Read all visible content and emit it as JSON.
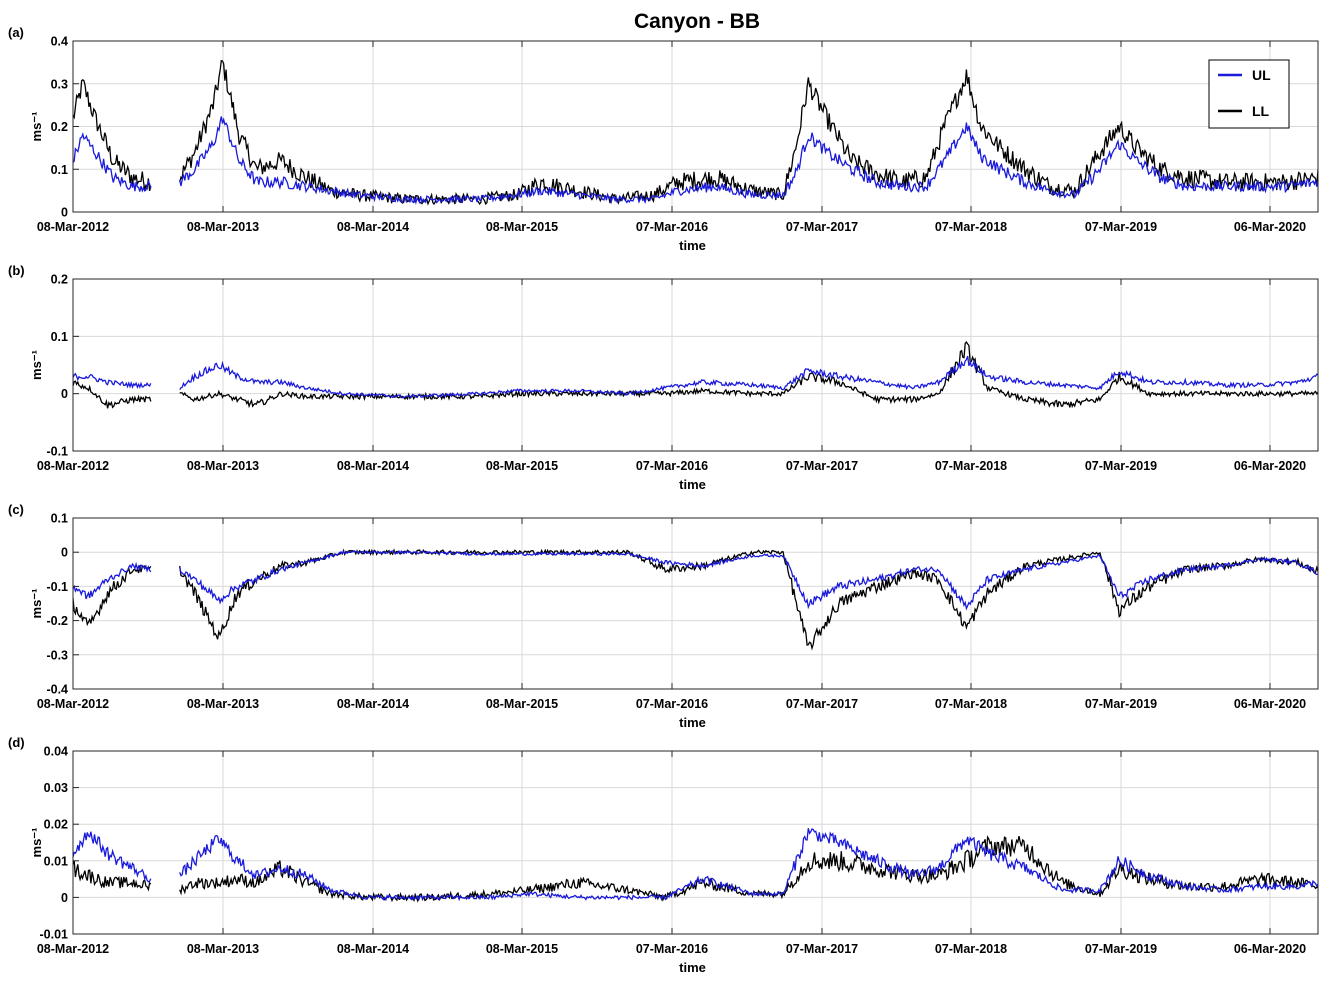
{
  "figure": {
    "title": "Canyon - BB",
    "colors": {
      "UL": "#1a1adb",
      "LL": "#000000",
      "grid": "#d9d9d9",
      "axes": "#262626"
    },
    "legend": {
      "items": [
        "UL",
        "LL"
      ],
      "placement": "top-right (panel a)"
    }
  },
  "chart_data": [
    {
      "type": "line",
      "panel": "(a)",
      "xlabel": "time",
      "ylabel": "ms⁻¹",
      "ylim": [
        0,
        0.4
      ],
      "yticks": [
        "0",
        "0.1",
        "0.2",
        "0.3",
        "0.4"
      ],
      "xticks": [
        "08-Mar-2012",
        "08-Mar-2013",
        "08-Mar-2014",
        "08-Mar-2015",
        "07-Mar-2016",
        "07-Mar-2017",
        "07-Mar-2018",
        "07-Mar-2019",
        "06-Mar-2020"
      ],
      "xrange": [
        "2012-03-08",
        "2020-07-20"
      ],
      "grid": true,
      "series": [
        {
          "name": "UL",
          "x": [
            "2012-03-08",
            "2012-04-01",
            "2012-05-01",
            "2012-06-15",
            "2012-08-01",
            "2012-09-15",
            "2012-10-25",
            "2012-11-25",
            "2013-01-01",
            "2013-02-15",
            "2013-03-10",
            "2013-04-20",
            "2013-06-01",
            "2013-08-01",
            "2013-10-01",
            "2013-12-01",
            "2014-02-01",
            "2014-06-01",
            "2014-09-01",
            "2014-12-01",
            "2015-03-01",
            "2015-05-01",
            "2015-08-01",
            "2015-11-01",
            "2016-02-01",
            "2016-04-01",
            "2016-07-01",
            "2016-10-01",
            "2016-12-15",
            "2017-01-15",
            "2017-02-15",
            "2017-04-01",
            "2017-06-01",
            "2017-08-01",
            "2017-10-01",
            "2017-12-01",
            "2018-01-15",
            "2018-03-10",
            "2018-04-15",
            "2018-06-01",
            "2018-08-01",
            "2018-10-01",
            "2018-12-01",
            "2019-02-01",
            "2019-03-20",
            "2019-05-01",
            "2019-07-01",
            "2019-09-01",
            "2019-12-01",
            "2020-03-01",
            "2020-05-01",
            "2020-07-20"
          ],
          "y": [
            0.12,
            0.18,
            0.14,
            0.08,
            0.06,
            0.06,
            null,
            0.07,
            0.1,
            0.16,
            0.22,
            0.12,
            0.07,
            0.07,
            0.06,
            0.05,
            0.04,
            0.03,
            0.03,
            0.03,
            0.04,
            0.05,
            0.04,
            0.03,
            0.03,
            0.05,
            0.06,
            0.04,
            0.04,
            0.09,
            0.18,
            0.14,
            0.1,
            0.07,
            0.06,
            0.06,
            0.12,
            0.2,
            0.13,
            0.1,
            0.07,
            0.05,
            0.04,
            0.1,
            0.16,
            0.12,
            0.08,
            0.06,
            0.06,
            0.06,
            0.06,
            0.07
          ]
        },
        {
          "name": "LL",
          "x": [
            "2012-03-08",
            "2012-04-01",
            "2012-05-01",
            "2012-06-15",
            "2012-08-01",
            "2012-09-15",
            "2012-10-25",
            "2012-11-25",
            "2013-01-01",
            "2013-02-15",
            "2013-03-10",
            "2013-04-20",
            "2013-06-01",
            "2013-08-01",
            "2013-10-01",
            "2013-12-01",
            "2014-02-01",
            "2014-06-01",
            "2014-09-01",
            "2014-12-01",
            "2015-03-01",
            "2015-05-01",
            "2015-08-01",
            "2015-11-01",
            "2016-02-01",
            "2016-04-01",
            "2016-07-01",
            "2016-10-01",
            "2016-12-15",
            "2017-01-15",
            "2017-02-15",
            "2017-04-01",
            "2017-06-01",
            "2017-08-01",
            "2017-10-01",
            "2017-12-01",
            "2018-01-15",
            "2018-03-10",
            "2018-04-15",
            "2018-06-01",
            "2018-08-01",
            "2018-10-01",
            "2018-12-01",
            "2019-02-01",
            "2019-03-20",
            "2019-05-01",
            "2019-07-01",
            "2019-09-01",
            "2019-12-01",
            "2020-03-01",
            "2020-05-01",
            "2020-07-20"
          ],
          "y": [
            0.22,
            0.3,
            0.22,
            0.12,
            0.08,
            0.07,
            null,
            0.08,
            0.14,
            0.25,
            0.35,
            0.18,
            0.1,
            0.12,
            0.08,
            0.05,
            0.04,
            0.03,
            0.03,
            0.03,
            0.04,
            0.07,
            0.05,
            0.03,
            0.04,
            0.07,
            0.08,
            0.05,
            0.04,
            0.15,
            0.3,
            0.22,
            0.12,
            0.09,
            0.07,
            0.08,
            0.2,
            0.32,
            0.2,
            0.15,
            0.1,
            0.06,
            0.05,
            0.14,
            0.2,
            0.15,
            0.1,
            0.08,
            0.07,
            0.07,
            0.07,
            0.08
          ]
        }
      ]
    },
    {
      "type": "line",
      "panel": "(b)",
      "xlabel": "time",
      "ylabel": "ms⁻¹",
      "ylim": [
        -0.1,
        0.2
      ],
      "yticks": [
        "-0.1",
        "0",
        "0.1",
        "0.2"
      ],
      "xticks": [
        "08-Mar-2012",
        "08-Mar-2013",
        "08-Mar-2014",
        "08-Mar-2015",
        "07-Mar-2016",
        "07-Mar-2017",
        "07-Mar-2018",
        "07-Mar-2019",
        "06-Mar-2020"
      ],
      "xrange": [
        "2012-03-08",
        "2020-07-20"
      ],
      "grid": true,
      "series": [
        {
          "name": "UL",
          "x": [
            "2012-03-08",
            "2012-04-15",
            "2012-06-01",
            "2012-08-01",
            "2012-09-15",
            "2012-10-25",
            "2012-11-25",
            "2013-01-01",
            "2013-03-01",
            "2013-04-15",
            "2013-06-01",
            "2013-08-01",
            "2013-10-01",
            "2014-01-01",
            "2014-06-01",
            "2014-12-01",
            "2015-03-01",
            "2015-08-01",
            "2015-12-01",
            "2016-03-01",
            "2016-06-01",
            "2016-10-01",
            "2016-12-15",
            "2017-02-15",
            "2017-05-01",
            "2017-08-01",
            "2017-11-01",
            "2018-01-01",
            "2018-03-10",
            "2018-05-01",
            "2018-08-01",
            "2018-11-01",
            "2019-02-01",
            "2019-03-20",
            "2019-06-01",
            "2019-09-01",
            "2019-12-01",
            "2020-03-01",
            "2020-06-01",
            "2020-07-20"
          ],
          "y": [
            0.03,
            0.03,
            0.02,
            0.015,
            0.015,
            null,
            0.01,
            0.03,
            0.05,
            0.03,
            0.02,
            0.02,
            0.01,
            0.0,
            -0.005,
            0.0,
            0.005,
            0.005,
            0.0,
            0.01,
            0.02,
            0.015,
            0.01,
            0.04,
            0.03,
            0.02,
            0.01,
            0.02,
            0.06,
            0.03,
            0.02,
            0.015,
            0.01,
            0.04,
            0.02,
            0.02,
            0.015,
            0.015,
            0.02,
            0.03
          ]
        },
        {
          "name": "LL",
          "x": [
            "2012-03-08",
            "2012-04-15",
            "2012-06-01",
            "2012-08-01",
            "2012-09-15",
            "2012-10-25",
            "2012-11-25",
            "2013-01-01",
            "2013-03-01",
            "2013-04-15",
            "2013-06-01",
            "2013-08-01",
            "2013-10-01",
            "2014-01-01",
            "2014-06-01",
            "2014-12-01",
            "2015-03-01",
            "2015-08-01",
            "2015-12-01",
            "2016-03-01",
            "2016-06-01",
            "2016-10-01",
            "2016-12-15",
            "2017-02-15",
            "2017-05-01",
            "2017-08-01",
            "2017-11-01",
            "2018-01-01",
            "2018-03-10",
            "2018-05-01",
            "2018-08-01",
            "2018-11-01",
            "2019-02-01",
            "2019-03-20",
            "2019-06-01",
            "2019-09-01",
            "2019-12-01",
            "2020-03-01",
            "2020-06-01",
            "2020-07-20"
          ],
          "y": [
            0.02,
            0.01,
            -0.02,
            -0.01,
            -0.01,
            null,
            0.0,
            -0.01,
            0.0,
            -0.01,
            -0.02,
            0.0,
            -0.005,
            -0.005,
            -0.005,
            -0.005,
            0.0,
            0.0,
            0.0,
            0.0,
            0.005,
            0.0,
            0.0,
            0.03,
            0.02,
            -0.01,
            -0.01,
            0.0,
            0.08,
            0.01,
            -0.01,
            -0.02,
            -0.01,
            0.03,
            0.0,
            0.0,
            0.0,
            0.0,
            0.0,
            0.0
          ]
        }
      ]
    },
    {
      "type": "line",
      "panel": "(c)",
      "xlabel": "time",
      "ylabel": "ms⁻¹",
      "ylim": [
        -0.4,
        0.1
      ],
      "yticks": [
        "-0.4",
        "-0.3",
        "-0.2",
        "-0.1",
        "0",
        "0.1"
      ],
      "xticks": [
        "08-Mar-2012",
        "08-Mar-2013",
        "08-Mar-2014",
        "08-Mar-2015",
        "07-Mar-2016",
        "07-Mar-2017",
        "07-Mar-2018",
        "07-Mar-2019",
        "06-Mar-2020"
      ],
      "xrange": [
        "2012-03-08",
        "2020-07-20"
      ],
      "grid": true,
      "series": [
        {
          "name": "UL",
          "x": [
            "2012-03-08",
            "2012-04-15",
            "2012-06-01",
            "2012-08-01",
            "2012-09-15",
            "2012-10-25",
            "2012-11-25",
            "2013-01-01",
            "2013-03-01",
            "2013-04-15",
            "2013-06-01",
            "2013-08-01",
            "2013-10-01",
            "2014-01-01",
            "2014-06-01",
            "2014-12-01",
            "2015-06-01",
            "2015-12-01",
            "2016-03-01",
            "2016-06-01",
            "2016-10-01",
            "2016-12-15",
            "2017-02-15",
            "2017-05-01",
            "2017-08-01",
            "2017-11-01",
            "2018-01-01",
            "2018-03-10",
            "2018-05-01",
            "2018-08-01",
            "2018-11-01",
            "2019-02-01",
            "2019-03-20",
            "2019-06-01",
            "2019-09-01",
            "2019-12-01",
            "2020-03-01",
            "2020-06-01",
            "2020-07-20"
          ],
          "y": [
            -0.1,
            -0.13,
            -0.08,
            -0.04,
            -0.05,
            null,
            -0.05,
            -0.08,
            -0.14,
            -0.1,
            -0.08,
            -0.05,
            -0.03,
            0.0,
            0.0,
            -0.005,
            -0.005,
            -0.005,
            -0.03,
            -0.04,
            -0.01,
            -0.01,
            -0.15,
            -0.1,
            -0.08,
            -0.05,
            -0.05,
            -0.16,
            -0.08,
            -0.05,
            -0.03,
            -0.01,
            -0.13,
            -0.08,
            -0.05,
            -0.04,
            -0.02,
            -0.03,
            -0.06
          ]
        },
        {
          "name": "LL",
          "x": [
            "2012-03-08",
            "2012-04-15",
            "2012-06-01",
            "2012-08-01",
            "2012-09-15",
            "2012-10-25",
            "2012-11-25",
            "2013-01-01",
            "2013-03-01",
            "2013-04-15",
            "2013-06-01",
            "2013-08-01",
            "2013-10-01",
            "2014-01-01",
            "2014-06-01",
            "2014-12-01",
            "2015-06-01",
            "2015-12-01",
            "2016-03-01",
            "2016-06-01",
            "2016-10-01",
            "2016-12-15",
            "2017-02-15",
            "2017-05-01",
            "2017-08-01",
            "2017-11-01",
            "2018-01-01",
            "2018-03-10",
            "2018-05-01",
            "2018-08-01",
            "2018-11-01",
            "2019-02-01",
            "2019-03-20",
            "2019-06-01",
            "2019-09-01",
            "2019-12-01",
            "2020-03-01",
            "2020-06-01",
            "2020-07-20"
          ],
          "y": [
            -0.15,
            -0.22,
            -0.12,
            -0.05,
            -0.05,
            null,
            -0.05,
            -0.12,
            -0.25,
            -0.12,
            -0.08,
            -0.04,
            -0.03,
            0.0,
            0.0,
            0.0,
            0.0,
            0.0,
            -0.05,
            -0.04,
            0.0,
            0.0,
            -0.28,
            -0.15,
            -0.1,
            -0.06,
            -0.08,
            -0.22,
            -0.12,
            -0.04,
            -0.02,
            0.0,
            -0.17,
            -0.1,
            -0.05,
            -0.04,
            -0.02,
            -0.03,
            -0.06
          ]
        }
      ]
    },
    {
      "type": "line",
      "panel": "(d)",
      "xlabel": "time",
      "ylabel": "ms⁻¹",
      "ylim": [
        -0.01,
        0.04
      ],
      "yticks": [
        "-0.01",
        "0",
        "0.01",
        "0.02",
        "0.03",
        "0.04"
      ],
      "xticks": [
        "08-Mar-2012",
        "08-Mar-2013",
        "08-Mar-2014",
        "08-Mar-2015",
        "07-Mar-2016",
        "07-Mar-2017",
        "07-Mar-2018",
        "07-Mar-2019",
        "06-Mar-2020"
      ],
      "xrange": [
        "2012-03-08",
        "2020-07-20"
      ],
      "grid": true,
      "series": [
        {
          "name": "UL",
          "x": [
            "2012-03-08",
            "2012-04-15",
            "2012-06-01",
            "2012-08-01",
            "2012-09-15",
            "2012-10-25",
            "2012-11-25",
            "2013-01-01",
            "2013-03-01",
            "2013-04-15",
            "2013-06-01",
            "2013-08-01",
            "2013-10-01",
            "2013-12-01",
            "2014-03-01",
            "2014-08-01",
            "2015-01-01",
            "2015-04-01",
            "2015-08-01",
            "2015-12-01",
            "2016-03-01",
            "2016-06-01",
            "2016-10-01",
            "2016-12-15",
            "2017-02-15",
            "2017-05-01",
            "2017-08-01",
            "2017-11-01",
            "2018-01-01",
            "2018-03-10",
            "2018-05-01",
            "2018-08-01",
            "2018-11-01",
            "2019-02-01",
            "2019-03-20",
            "2019-06-01",
            "2019-09-01",
            "2019-12-01",
            "2020-03-01",
            "2020-06-01",
            "2020-07-20"
          ],
          "y": [
            0.012,
            0.018,
            0.012,
            0.008,
            0.005,
            null,
            0.006,
            0.01,
            0.016,
            0.01,
            0.006,
            0.008,
            0.006,
            0.002,
            0.0,
            0.0,
            0.0,
            0.001,
            0.0,
            0.0,
            0.0,
            0.005,
            0.001,
            0.001,
            0.018,
            0.015,
            0.01,
            0.006,
            0.008,
            0.016,
            0.012,
            0.008,
            0.002,
            0.002,
            0.01,
            0.006,
            0.003,
            0.002,
            0.003,
            0.003,
            0.004
          ]
        },
        {
          "name": "LL",
          "x": [
            "2012-03-08",
            "2012-04-15",
            "2012-06-01",
            "2012-08-01",
            "2012-09-15",
            "2012-10-25",
            "2012-11-25",
            "2013-01-01",
            "2013-03-01",
            "2013-04-15",
            "2013-06-01",
            "2013-08-01",
            "2013-10-01",
            "2013-12-01",
            "2014-03-01",
            "2014-08-01",
            "2015-01-01",
            "2015-04-01",
            "2015-08-01",
            "2015-12-01",
            "2016-03-01",
            "2016-06-01",
            "2016-10-01",
            "2016-12-15",
            "2017-02-15",
            "2017-05-01",
            "2017-08-01",
            "2017-11-01",
            "2018-01-01",
            "2018-03-10",
            "2018-05-01",
            "2018-08-01",
            "2018-11-01",
            "2019-02-01",
            "2019-03-20",
            "2019-06-01",
            "2019-09-01",
            "2019-12-01",
            "2020-03-01",
            "2020-06-01",
            "2020-07-20"
          ],
          "y": [
            0.008,
            0.006,
            0.004,
            0.004,
            0.003,
            null,
            0.002,
            0.004,
            0.004,
            0.005,
            0.004,
            0.008,
            0.004,
            0.001,
            0.0,
            0.0,
            0.001,
            0.002,
            0.004,
            0.002,
            0.0,
            0.004,
            0.001,
            0.001,
            0.01,
            0.01,
            0.008,
            0.006,
            0.006,
            0.01,
            0.014,
            0.014,
            0.004,
            0.001,
            0.008,
            0.005,
            0.003,
            0.003,
            0.005,
            0.004,
            0.003
          ]
        }
      ]
    }
  ]
}
